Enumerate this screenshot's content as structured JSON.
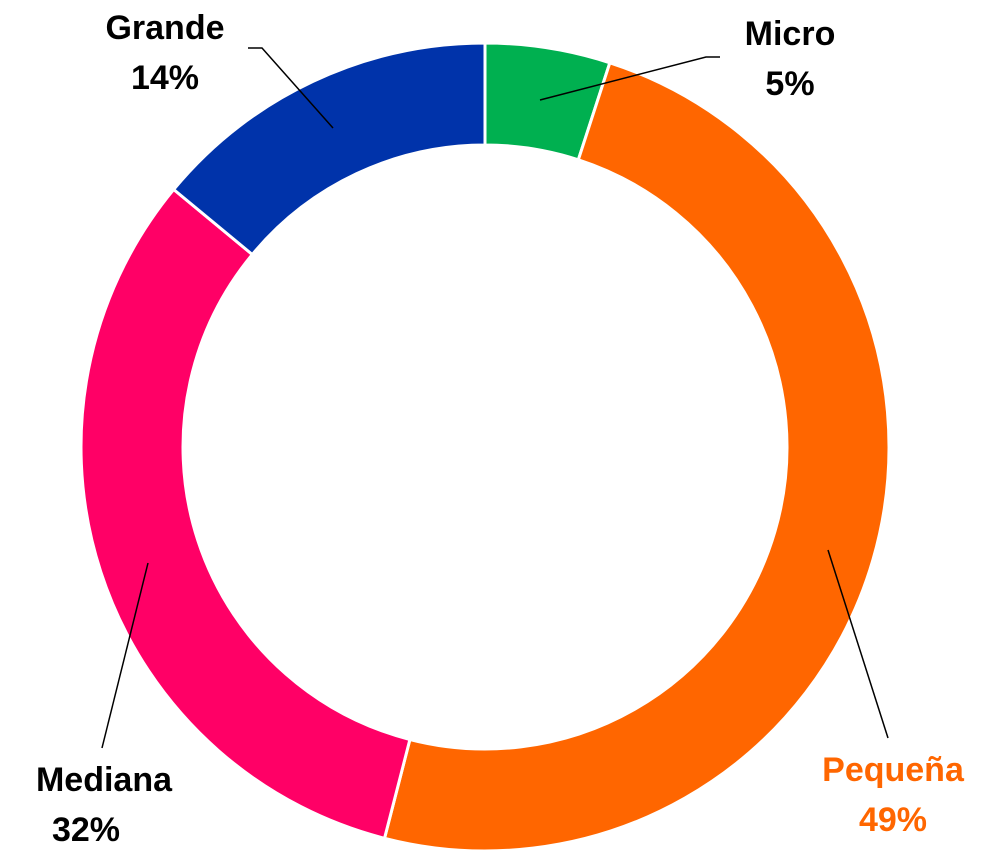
{
  "chart_data": {
    "type": "donut",
    "categories": [
      "Micro",
      "Pequeña",
      "Mediana",
      "Grande"
    ],
    "values": [
      5,
      49,
      32,
      14
    ],
    "value_labels": [
      "5%",
      "49%",
      "32%",
      "14%"
    ],
    "colors": [
      "#00b050",
      "#ff6600",
      "#ff0066",
      "#0033aa"
    ]
  }
}
